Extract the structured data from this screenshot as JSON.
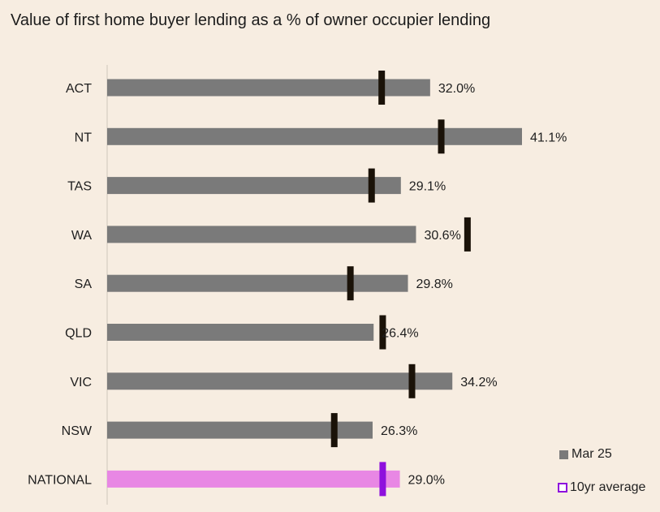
{
  "title": "Value of first home buyer lending as a % of owner occupier lending",
  "colors": {
    "bar": "#7a7a7a",
    "national_bar": "#e887e4",
    "marker": "#1a1208",
    "national_marker": "#8e10dd",
    "axis": "#cfc6bb"
  },
  "legend": {
    "current_label": "Mar 25",
    "average_label": "10yr average"
  },
  "chart_data": {
    "type": "bar",
    "orientation": "horizontal",
    "categories": [
      "ACT",
      "NT",
      "TAS",
      "WA",
      "SA",
      "QLD",
      "VIC",
      "NSW",
      "NATIONAL"
    ],
    "series": [
      {
        "name": "Mar 25",
        "values": [
          32.0,
          41.1,
          29.1,
          30.6,
          29.8,
          26.4,
          34.2,
          26.3,
          29.0
        ]
      },
      {
        "name": "10yr average",
        "values": [
          27.2,
          33.1,
          26.2,
          35.7,
          24.1,
          27.3,
          30.2,
          22.5,
          27.3
        ]
      }
    ],
    "data_labels": [
      "32.0%",
      "41.1%",
      "29.1%",
      "30.6%",
      "29.8%",
      "26.4%",
      "34.2%",
      "26.3%",
      "29.0%"
    ],
    "xlim": [
      0,
      41.1
    ],
    "grid": false,
    "legend_position": "bottom-right"
  }
}
